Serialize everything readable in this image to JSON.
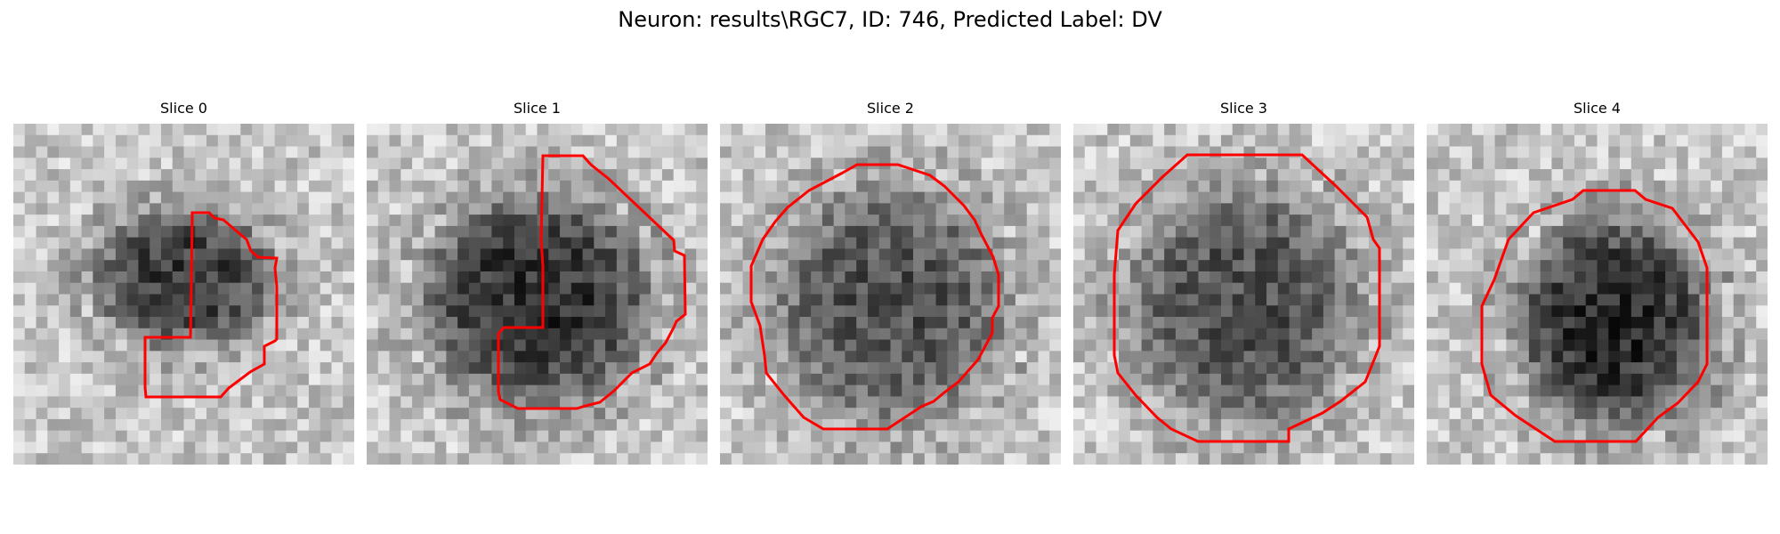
{
  "title": "Neuron: results\\RGC7, ID: 746, Predicted Label: DV",
  "contour_color": "#ff0000",
  "slices": [
    {
      "label": "Slice 0"
    },
    {
      "label": "Slice 1"
    },
    {
      "label": "Slice 2"
    },
    {
      "label": "Slice 3"
    },
    {
      "label": "Slice 4"
    }
  ]
}
